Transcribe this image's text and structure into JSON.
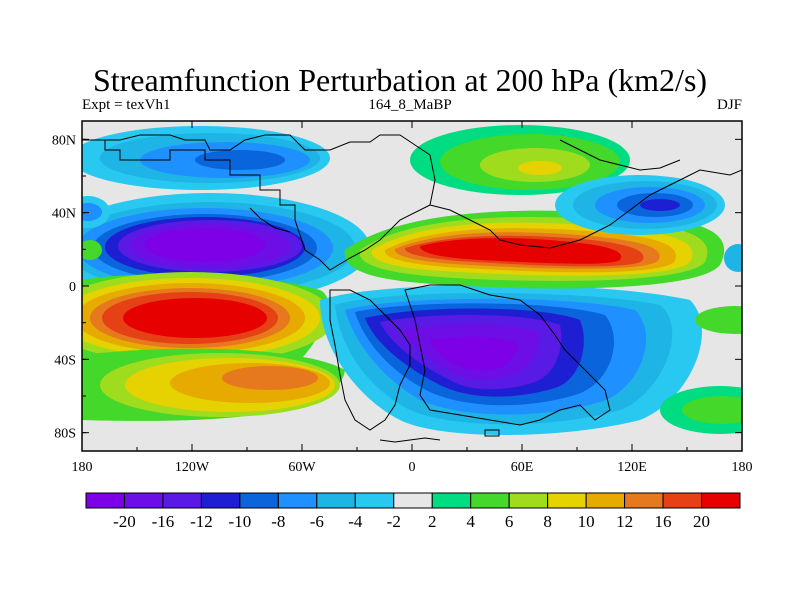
{
  "title": "Streamfunction Perturbation at 200 hPa (km2/s)",
  "subtitle_left": "Expt = texVh1",
  "subtitle_center": "164_8_MaBP",
  "subtitle_right": "DJF",
  "map": {
    "projection": "cylindrical-equidistant",
    "lon_range": [
      -180,
      180
    ],
    "lat_range": [
      -90,
      90
    ],
    "x_ticks": [
      {
        "value": -180,
        "label": "180"
      },
      {
        "value": -120,
        "label": "120W"
      },
      {
        "value": -60,
        "label": "60W"
      },
      {
        "value": 0,
        "label": "0"
      },
      {
        "value": 60,
        "label": "60E"
      },
      {
        "value": 120,
        "label": "120E"
      },
      {
        "value": 180,
        "label": "180"
      }
    ],
    "y_ticks": [
      {
        "value": 80,
        "label": "80N"
      },
      {
        "value": 40,
        "label": "40N"
      },
      {
        "value": 0,
        "label": "0"
      },
      {
        "value": -40,
        "label": "40S"
      },
      {
        "value": -80,
        "label": "80S"
      }
    ],
    "features": [
      {
        "name": "n-pacific-high",
        "lon": -100,
        "lat": 20,
        "level": -20
      },
      {
        "name": "s-pacific-low",
        "lon": -120,
        "lat": -20,
        "level": 20
      },
      {
        "name": "africa-asia-high",
        "lon": 75,
        "lat": 20,
        "level": 20
      },
      {
        "name": "s-africa-low",
        "lon": 40,
        "lat": -35,
        "level": -20
      },
      {
        "name": "arctic-ridge",
        "lon": 60,
        "lat": 65,
        "level": 10
      },
      {
        "name": "n-pacific-trough",
        "lon": 140,
        "lat": 45,
        "level": -12
      },
      {
        "name": "n-america-trough",
        "lon": -130,
        "lat": 70,
        "level": -8
      },
      {
        "name": "s-pacific-high",
        "lon": -90,
        "lat": -48,
        "level": 12
      },
      {
        "name": "s-indian-high",
        "lon": 160,
        "lat": -65,
        "level": 6
      }
    ]
  },
  "colorbar": {
    "colors": [
      "#7d00e6",
      "#6e0ee6",
      "#5a1ae6",
      "#1e1ed2",
      "#0a64dc",
      "#1e90ff",
      "#1eb4e6",
      "#28c8f0",
      "#e6e6e6",
      "#00dc82",
      "#44d82a",
      "#a0dc1e",
      "#e6d200",
      "#e6aa00",
      "#e6781e",
      "#e64114",
      "#e60000"
    ],
    "labels": [
      "-20",
      "-16",
      "-12",
      "-10",
      "-8",
      "-6",
      "-4",
      "-2",
      "2",
      "4",
      "6",
      "8",
      "10",
      "12",
      "16",
      "20"
    ]
  }
}
